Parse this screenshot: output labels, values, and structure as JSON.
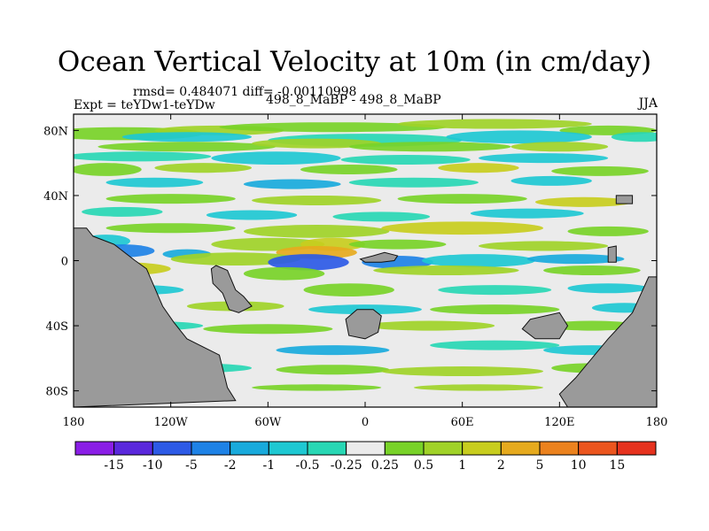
{
  "title": "Ocean Vertical Velocity at 10m (in cm/day)",
  "stats_text": "rmsd= 0.484071 diff= -0.00110998",
  "experiment": "Expt = teYDw1-teYDw",
  "center_label": "498_8_MaBP - 498_8_MaBP",
  "season": "JJA",
  "colors": {
    "land": "#9a9a9a",
    "neutral": "#ebebeb",
    "frame": "#000000"
  },
  "chart_data": {
    "type": "heatmap",
    "title": "Ocean Vertical Velocity at 10m (in cm/day)",
    "variable": "vertical velocity difference",
    "units": "cm/day",
    "xlim": [
      -180,
      180
    ],
    "ylim": [
      -90,
      90
    ],
    "x_ticks": [
      {
        "value": -180,
        "label": "180"
      },
      {
        "value": -120,
        "label": "120W"
      },
      {
        "value": -60,
        "label": "60W"
      },
      {
        "value": 0,
        "label": "0"
      },
      {
        "value": 60,
        "label": "60E"
      },
      {
        "value": 120,
        "label": "120E"
      },
      {
        "value": 180,
        "label": "180"
      }
    ],
    "y_ticks": [
      {
        "value": 80,
        "label": "80N"
      },
      {
        "value": 40,
        "label": "40N"
      },
      {
        "value": 0,
        "label": "0"
      },
      {
        "value": -40,
        "label": "40S"
      },
      {
        "value": -80,
        "label": "80S"
      }
    ],
    "colorbar": {
      "levels": [
        "-15",
        "-10",
        "-5",
        "-2",
        "-1",
        "-0.5",
        "-0.25",
        "0.25",
        "0.5",
        "1",
        "2",
        "5",
        "10",
        "15"
      ],
      "colors": [
        "#8a1ee6",
        "#5a28dc",
        "#2d5ae6",
        "#1e82e6",
        "#19aadc",
        "#1ec8d2",
        "#28d7b4",
        "#ebebeb",
        "#78d228",
        "#a0d228",
        "#c8cd1e",
        "#e6aa1e",
        "#eb821e",
        "#eb551e",
        "#e6321e"
      ]
    }
  }
}
